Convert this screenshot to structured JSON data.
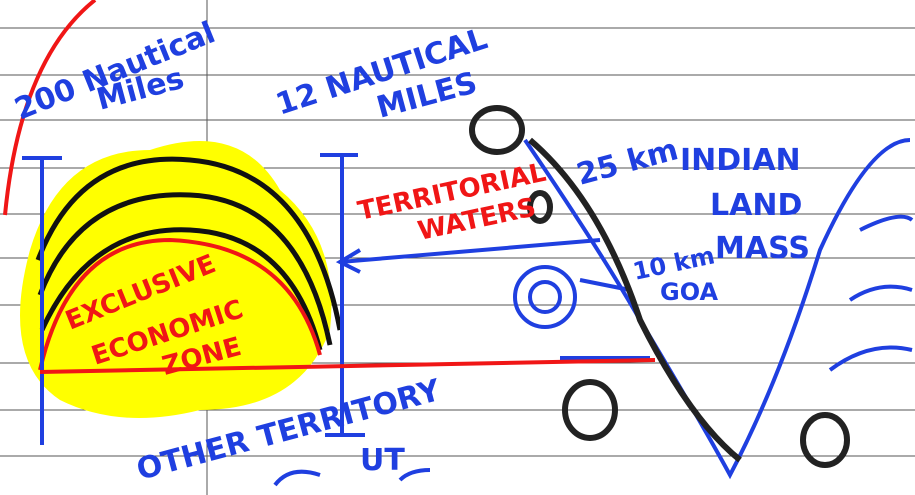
{
  "labels": {
    "eez_limit": [
      "200 Nautical",
      "Miles"
    ],
    "territorial_limit": [
      "12 NAUTICAL",
      "MILES"
    ],
    "territorial_waters": [
      "TERRITORIAL",
      "WATERS"
    ],
    "distance_25": "25 km",
    "landmass": [
      "INDIAN",
      "LAND",
      "MASS"
    ],
    "distance_10": "10 km",
    "goa": "GOA",
    "eez": [
      "EXCLUSIVE",
      "ECONOMIC",
      "ZONE"
    ],
    "other_territory": "OTHER TERRITORY",
    "ut": "UT"
  }
}
